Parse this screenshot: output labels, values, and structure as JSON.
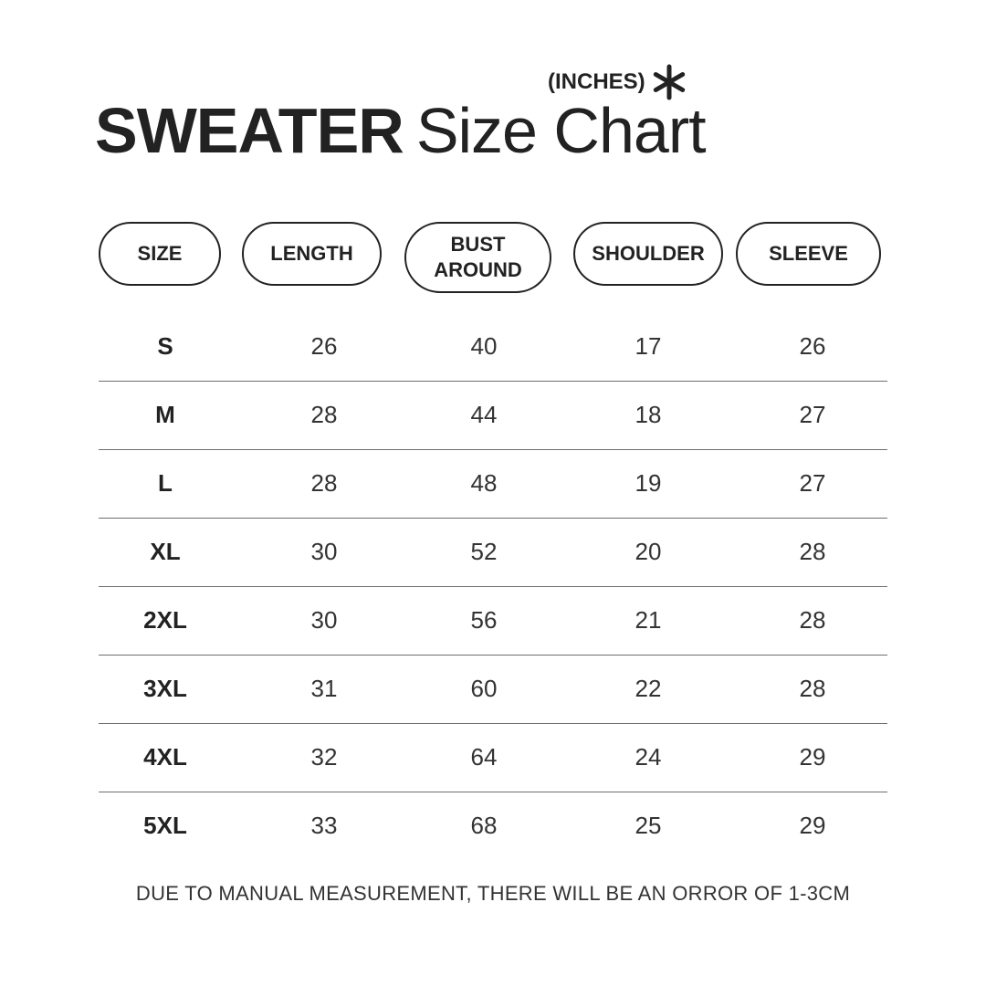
{
  "units_label": "(INCHES)",
  "asterisk_icon": "asterisk-icon",
  "title": {
    "bold": "SWEATER",
    "rest": "Size Chart"
  },
  "chart_data": {
    "type": "table",
    "title": "SWEATER Size Chart",
    "units": "(INCHES)",
    "columns": [
      "SIZE",
      "LENGTH",
      "BUST\nAROUND",
      "SHOULDER",
      "SLEEVE"
    ],
    "rows": [
      [
        "S",
        "26",
        "40",
        "17",
        "26"
      ],
      [
        "M",
        "28",
        "44",
        "18",
        "27"
      ],
      [
        "L",
        "28",
        "48",
        "19",
        "27"
      ],
      [
        "XL",
        "30",
        "52",
        "20",
        "28"
      ],
      [
        "2XL",
        "30",
        "56",
        "21",
        "28"
      ],
      [
        "3XL",
        "31",
        "60",
        "22",
        "28"
      ],
      [
        "4XL",
        "32",
        "64",
        "24",
        "29"
      ],
      [
        "5XL",
        "33",
        "68",
        "25",
        "29"
      ]
    ]
  },
  "footnote": "DUE TO MANUAL MEASUREMENT, THERE WILL BE AN ORROR OF 1-3CM"
}
